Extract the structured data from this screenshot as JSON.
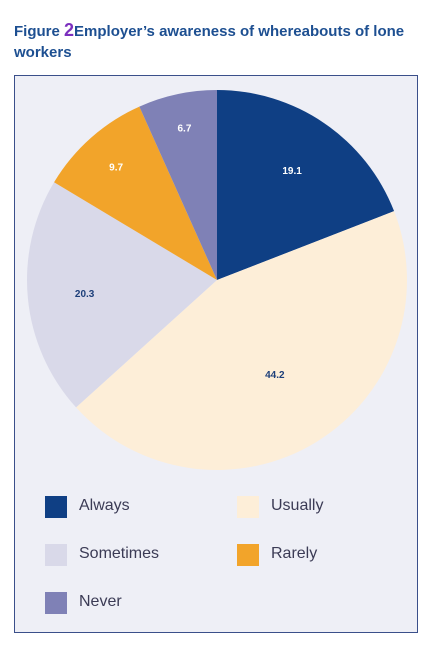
{
  "title": {
    "figure_label": "Figure",
    "figure_number": "2",
    "text": "Employer’s awareness of whereabouts of lone workers"
  },
  "chart_data": {
    "type": "pie",
    "title": "Figure 2 Employer’s awareness of whereabouts of lone workers",
    "legend_position": "bottom",
    "slices": [
      {
        "name": "Always",
        "value": 19.1,
        "label": "19.1",
        "color": "#0f3f84",
        "label_color": "#ffffff"
      },
      {
        "name": "Usually",
        "value": 44.2,
        "label": "44.2",
        "color": "#fdeed8",
        "label_color": "#1d3f7a"
      },
      {
        "name": "Sometimes",
        "value": 20.3,
        "label": "20.3",
        "color": "#d9d9e9",
        "label_color": "#1d3f7a"
      },
      {
        "name": "Rarely",
        "value": 9.7,
        "label": "9.7",
        "color": "#f2a42a",
        "label_color": "#ffffff"
      },
      {
        "name": "Never",
        "value": 6.7,
        "label": "6.7",
        "color": "#7f81b6",
        "label_color": "#ffffff"
      }
    ]
  }
}
